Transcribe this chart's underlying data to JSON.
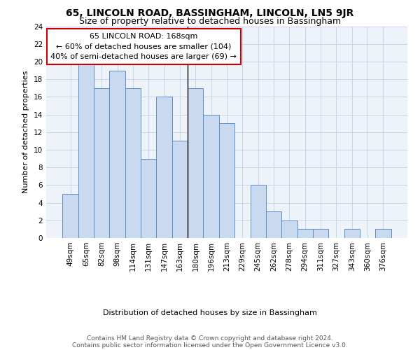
{
  "title": "65, LINCOLN ROAD, BASSINGHAM, LINCOLN, LN5 9JR",
  "subtitle": "Size of property relative to detached houses in Bassingham",
  "xlabel": "Distribution of detached houses by size in Bassingham",
  "ylabel": "Number of detached properties",
  "categories": [
    "49sqm",
    "65sqm",
    "82sqm",
    "98sqm",
    "114sqm",
    "131sqm",
    "147sqm",
    "163sqm",
    "180sqm",
    "196sqm",
    "213sqm",
    "229sqm",
    "245sqm",
    "262sqm",
    "278sqm",
    "294sqm",
    "311sqm",
    "327sqm",
    "343sqm",
    "360sqm",
    "376sqm"
  ],
  "values": [
    5,
    20,
    17,
    19,
    17,
    9,
    16,
    11,
    17,
    14,
    13,
    0,
    6,
    3,
    2,
    1,
    1,
    0,
    1,
    0,
    1
  ],
  "bar_color": "#c9d9f0",
  "bar_edge_color": "#5b8fc9",
  "annotation_text": "65 LINCOLN ROAD: 168sqm\n← 60% of detached houses are smaller (104)\n40% of semi-detached houses are larger (69) →",
  "annotation_box_color": "white",
  "annotation_box_edge_color": "#cc0000",
  "vline_index": 7.5,
  "ylim": [
    0,
    24
  ],
  "yticks": [
    0,
    2,
    4,
    6,
    8,
    10,
    12,
    14,
    16,
    18,
    20,
    22,
    24
  ],
  "footer_line1": "Contains HM Land Registry data © Crown copyright and database right 2024.",
  "footer_line2": "Contains public sector information licensed under the Open Government Licence v3.0.",
  "bg_color": "#eef2f9",
  "grid_color": "#c8d4e8",
  "title_fontsize": 10,
  "subtitle_fontsize": 9,
  "annotation_fontsize": 8,
  "axis_fontsize": 7.5,
  "ylabel_fontsize": 8,
  "xlabel_fontsize": 8,
  "footer_fontsize": 6.5
}
